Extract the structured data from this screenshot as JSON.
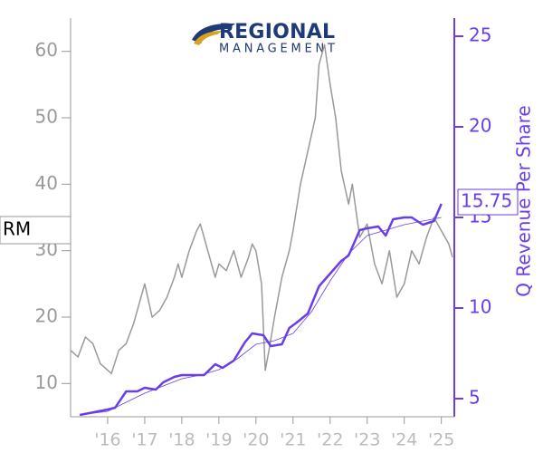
{
  "logo": {
    "line1": "REGIONAL",
    "line2": "MANAGEMENT"
  },
  "chart_data": {
    "type": "line",
    "y2label": "Q Revenue Per Share",
    "xlim": [
      2015,
      2025.35
    ],
    "xticks": [
      {
        "value": 2016,
        "label": "'16"
      },
      {
        "value": 2017,
        "label": "'17"
      },
      {
        "value": 2018,
        "label": "'18"
      },
      {
        "value": 2019,
        "label": "'19"
      },
      {
        "value": 2020,
        "label": "'20"
      },
      {
        "value": 2021,
        "label": "'21"
      },
      {
        "value": 2022,
        "label": "'22"
      },
      {
        "value": 2023,
        "label": "'23"
      },
      {
        "value": 2024,
        "label": "'24"
      },
      {
        "value": 2025,
        "label": "'25"
      }
    ],
    "ylim": [
      5,
      65
    ],
    "yticks": [
      10,
      20,
      30,
      40,
      50,
      60
    ],
    "y2lim": [
      4,
      26
    ],
    "y2ticks": [
      5,
      10,
      15,
      20,
      25
    ],
    "series": [
      {
        "name": "RM",
        "color": "#999999",
        "width": 1.5,
        "x": [
          2015.0,
          2015.2,
          2015.4,
          2015.6,
          2015.8,
          2016.0,
          2016.1,
          2016.3,
          2016.5,
          2016.7,
          2016.9,
          2017.0,
          2017.2,
          2017.4,
          2017.6,
          2017.8,
          2017.9,
          2018.0,
          2018.2,
          2018.4,
          2018.5,
          2018.7,
          2018.9,
          2019.0,
          2019.2,
          2019.4,
          2019.6,
          2019.8,
          2019.9,
          2020.0,
          2020.15,
          2020.25,
          2020.35,
          2020.5,
          2020.7,
          2020.9,
          2021.0,
          2021.2,
          2021.4,
          2021.6,
          2021.7,
          2021.85,
          2022.0,
          2022.15,
          2022.3,
          2022.5,
          2022.6,
          2022.8,
          2023.0,
          2023.2,
          2023.4,
          2023.6,
          2023.8,
          2024.0,
          2024.2,
          2024.4,
          2024.6,
          2024.8,
          2025.0,
          2025.2,
          2025.3
        ],
        "values": [
          15,
          14,
          17,
          16,
          13,
          12,
          11.5,
          15,
          16,
          19,
          23,
          25,
          20,
          21,
          23,
          26,
          28,
          26,
          30,
          33,
          34,
          30,
          26,
          28,
          27,
          30,
          26,
          29,
          31,
          30,
          25,
          12,
          15,
          20,
          26,
          30,
          33,
          40,
          45,
          50,
          58,
          61,
          55,
          50,
          42,
          37,
          40,
          32,
          34,
          28,
          25,
          30,
          23,
          25,
          30,
          28,
          32,
          35,
          33,
          31,
          29
        ]
      },
      {
        "color": "#6a3de8",
        "width": 2.5,
        "axis": "y2",
        "x": [
          2015.25,
          2015.5,
          2016.0,
          2016.2,
          2016.5,
          2016.8,
          2017.0,
          2017.3,
          2017.5,
          2017.8,
          2018.0,
          2018.3,
          2018.6,
          2018.9,
          2019.1,
          2019.4,
          2019.7,
          2019.9,
          2020.2,
          2020.4,
          2020.7,
          2020.9,
          2021.1,
          2021.4,
          2021.7,
          2022.0,
          2022.3,
          2022.5,
          2022.8,
          2023.0,
          2023.3,
          2023.5,
          2023.7,
          2024.0,
          2024.2,
          2024.5,
          2024.8,
          2025.0
        ],
        "values": [
          4.1,
          4.2,
          4.4,
          4.5,
          5.4,
          5.4,
          5.6,
          5.5,
          5.9,
          6.2,
          6.3,
          6.3,
          6.3,
          6.9,
          6.7,
          7.1,
          8.1,
          8.6,
          8.5,
          7.9,
          8.0,
          8.9,
          9.2,
          9.7,
          11.2,
          11.9,
          12.6,
          12.9,
          14.3,
          14.4,
          14.5,
          14.0,
          14.9,
          15.0,
          15.0,
          14.6,
          14.8,
          15.75
        ]
      },
      {
        "color": "#6a3de8",
        "width": 0.8,
        "axis": "y2",
        "x": [
          2015.25,
          2016.0,
          2016.5,
          2017.0,
          2017.5,
          2018.0,
          2018.5,
          2019.0,
          2019.5,
          2020.0,
          2020.5,
          2021.0,
          2021.5,
          2022.0,
          2022.5,
          2023.0,
          2023.5,
          2024.0,
          2024.5,
          2025.0
        ],
        "values": [
          4.1,
          4.3,
          4.8,
          5.3,
          5.7,
          6.1,
          6.3,
          6.6,
          7.2,
          8.0,
          8.2,
          8.6,
          9.8,
          11.5,
          13.0,
          14.0,
          14.3,
          14.6,
          14.8,
          15.0
        ]
      }
    ]
  }
}
